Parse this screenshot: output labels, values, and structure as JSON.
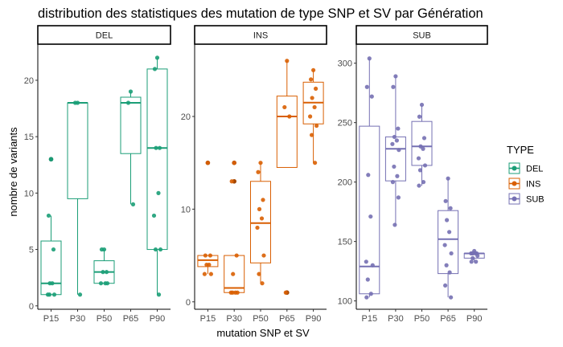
{
  "chart_data": {
    "type": "box",
    "title": "distribution des statistiques des mutation de type SNP et SV par Génération",
    "xlabel": "mutation SNP et SV",
    "ylabel": "nombre de variants",
    "categories": [
      "P15",
      "P30",
      "P50",
      "P65",
      "P90"
    ],
    "legend": {
      "title": "TYPE",
      "position": "right",
      "entries": [
        "DEL",
        "INS",
        "SUB"
      ]
    },
    "grid": false,
    "panels": [
      {
        "name": "DEL",
        "color": "#1b9e77",
        "ylim": [
          -0.3,
          23.2
        ],
        "yticks": [
          0,
          5,
          10,
          15,
          20
        ],
        "boxes": [
          {
            "x": "P15",
            "q1": 1,
            "median": 2,
            "q3": 5.75,
            "lower": 1,
            "upper": 8,
            "outliers": [
              13
            ]
          },
          {
            "x": "P30",
            "q1": 9.5,
            "median": 18,
            "q3": 18,
            "lower": 1,
            "upper": 18,
            "outliers": []
          },
          {
            "x": "P50",
            "q1": 2,
            "median": 3,
            "q3": 4,
            "lower": 2,
            "upper": 5,
            "outliers": []
          },
          {
            "x": "P65",
            "q1": 13.5,
            "median": 18,
            "q3": 18.5,
            "lower": 9,
            "upper": 19,
            "outliers": []
          },
          {
            "x": "P90",
            "q1": 5,
            "median": 14,
            "q3": 21,
            "lower": 1,
            "upper": 22,
            "outliers": []
          }
        ],
        "points": [
          {
            "x": "P15",
            "values": [
              13,
              8,
              5,
              2,
              2,
              1,
              1,
              1
            ]
          },
          {
            "x": "P30",
            "values": [
              18,
              18,
              1
            ]
          },
          {
            "x": "P50",
            "values": [
              5,
              5,
              3,
              3,
              2,
              2,
              2
            ]
          },
          {
            "x": "P65",
            "values": [
              19,
              18,
              9
            ]
          },
          {
            "x": "P90",
            "values": [
              22,
              21,
              14,
              14,
              10,
              8,
              5,
              5,
              1
            ]
          }
        ]
      },
      {
        "name": "INS",
        "color": "#d95f02",
        "ylim": [
          -0.8,
          27.8
        ],
        "yticks": [
          0,
          10,
          20
        ],
        "boxes": [
          {
            "x": "P15",
            "q1": 3.8,
            "median": 4.5,
            "q3": 5,
            "lower": 3,
            "upper": 5,
            "outliers": [
              15
            ]
          },
          {
            "x": "P30",
            "q1": 1,
            "median": 1.5,
            "q3": 5,
            "lower": 1,
            "upper": 5,
            "outliers": [
              13,
              15
            ]
          },
          {
            "x": "P50",
            "q1": 4.2,
            "median": 8.5,
            "q3": 13,
            "lower": 2,
            "upper": 15,
            "outliers": []
          },
          {
            "x": "P65",
            "q1": 14.5,
            "median": 20,
            "q3": 22.2,
            "lower": 14.5,
            "upper": 26,
            "outliers": [
              1
            ]
          },
          {
            "x": "P90",
            "q1": 19.2,
            "median": 21.5,
            "q3": 23.7,
            "lower": 15,
            "upper": 25,
            "outliers": []
          }
        ],
        "points": [
          {
            "x": "P15",
            "values": [
              15,
              5,
              5,
              4,
              4,
              3,
              3
            ]
          },
          {
            "x": "P30",
            "values": [
              15,
              13,
              5,
              3,
              1,
              1,
              1,
              1
            ]
          },
          {
            "x": "P50",
            "values": [
              15,
              14,
              11,
              10,
              9,
              8,
              5,
              3,
              2
            ]
          },
          {
            "x": "P65",
            "values": [
              26,
              21,
              20,
              1
            ]
          },
          {
            "x": "P90",
            "values": [
              25,
              24,
              23,
              22,
              21,
              20,
              19,
              18,
              15
            ]
          }
        ]
      },
      {
        "name": "SUB",
        "color": "#7570b3",
        "ylim": [
          93,
          316
        ],
        "yticks": [
          100,
          150,
          200,
          250,
          300
        ],
        "boxes": [
          {
            "x": "P15",
            "q1": 106,
            "median": 129,
            "q3": 247,
            "lower": 103,
            "upper": 304,
            "outliers": []
          },
          {
            "x": "P30",
            "q1": 201,
            "median": 228,
            "q3": 238,
            "lower": 164,
            "upper": 289,
            "outliers": []
          },
          {
            "x": "P50",
            "q1": 214,
            "median": 230,
            "q3": 251,
            "lower": 197,
            "upper": 265,
            "outliers": []
          },
          {
            "x": "P65",
            "q1": 123,
            "median": 152,
            "q3": 176,
            "lower": 103,
            "upper": 203,
            "outliers": []
          },
          {
            "x": "P90",
            "q1": 136,
            "median": 140,
            "q3": 140,
            "lower": 133,
            "upper": 142,
            "outliers": []
          }
        ],
        "points": [
          {
            "x": "P15",
            "values": [
              304,
              280,
              272,
              206,
              171,
              133,
              130,
              118,
              106,
              103
            ]
          },
          {
            "x": "P30",
            "values": [
              289,
              280,
              245,
              238,
              235,
              232,
              227,
              213,
              205,
              200,
              187,
              164
            ]
          },
          {
            "x": "P50",
            "values": [
              265,
              255,
              237,
              230,
              228,
              220,
              214,
              210,
              200,
              197
            ]
          },
          {
            "x": "P65",
            "values": [
              203,
              184,
              178,
              168,
              158,
              147,
              140,
              130,
              124,
              113,
              103
            ]
          },
          {
            "x": "P90",
            "values": [
              142,
              140,
              140,
              140,
              140,
              140,
              138,
              136,
              133,
              133
            ]
          }
        ]
      }
    ]
  }
}
